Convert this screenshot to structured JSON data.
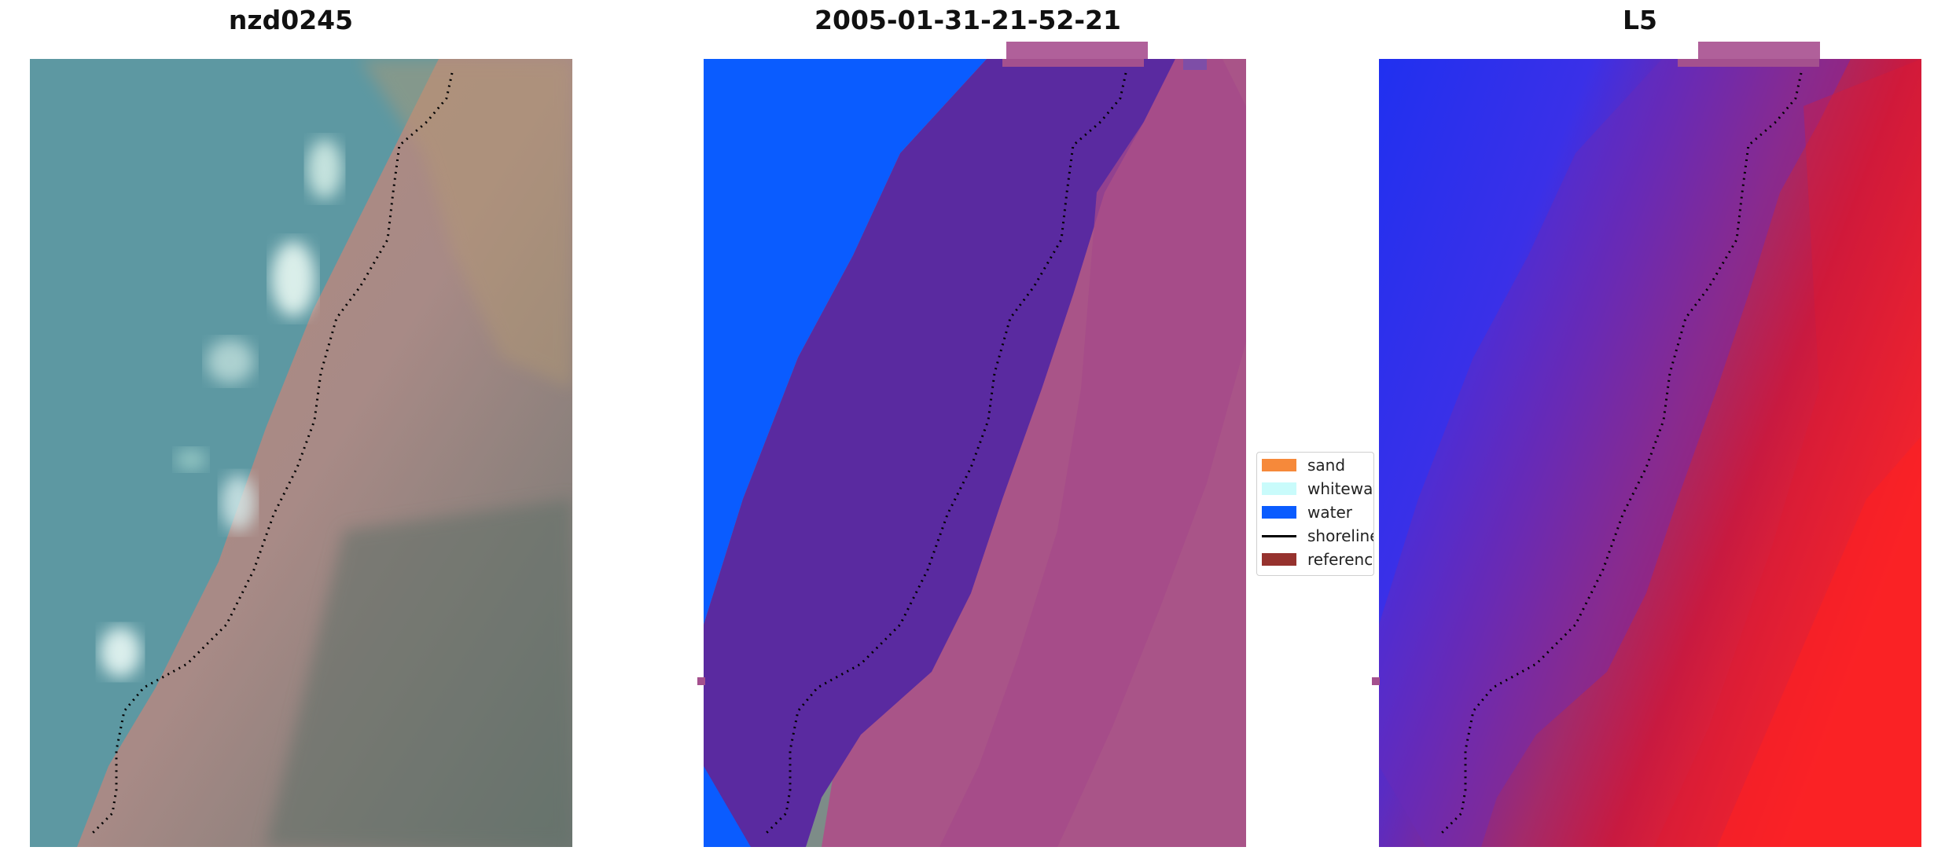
{
  "panels": {
    "rgb": {
      "title": "nzd0245"
    },
    "classified": {
      "title": "2005-01-31-21-52-21"
    },
    "index": {
      "title": "L5"
    }
  },
  "legend": {
    "items": [
      {
        "label": "sand",
        "color": "#f6893a"
      },
      {
        "label": "whitewater",
        "color": "#c9fbfb"
      },
      {
        "label": "water",
        "color": "#0a5cff"
      },
      {
        "label": "shoreline",
        "color": "#000000"
      },
      {
        "label": "reference shoreline",
        "color": "#96322e"
      }
    ]
  },
  "colors": {
    "water": "#0a5cff",
    "shore_buffer": "#5a2aa0",
    "land_overlay": "#b04a88",
    "sea_rgb": "#5b9aa0",
    "index_blue": "#2020ff",
    "index_red": "#ff1a2a"
  }
}
